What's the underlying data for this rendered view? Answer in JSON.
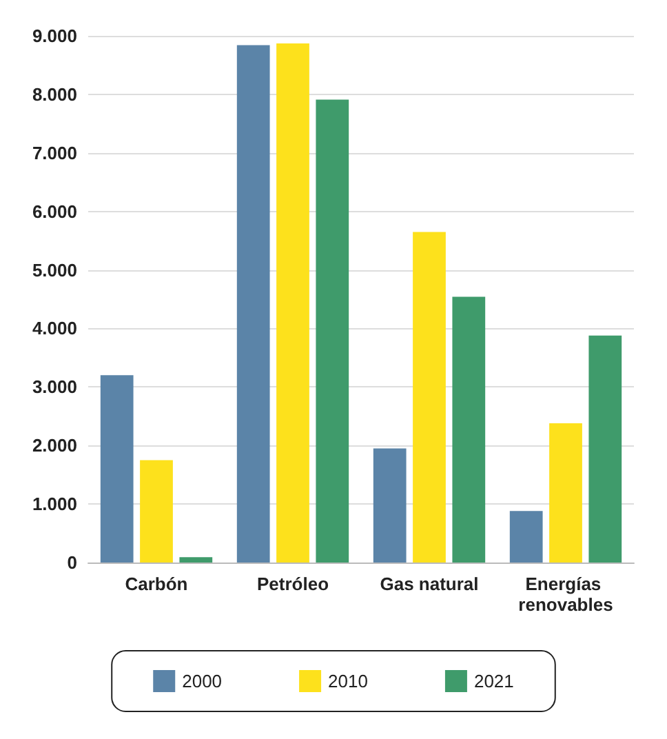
{
  "chart_data": {
    "type": "bar",
    "categories": [
      "Carbón",
      "Petróleo",
      "Gas natural",
      "Energías renovables"
    ],
    "series": [
      {
        "name": "2000",
        "color": "#5b84a8",
        "values": [
          3200,
          8840,
          1950,
          880
        ]
      },
      {
        "name": "2010",
        "color": "#fde11c",
        "values": [
          1750,
          8870,
          5650,
          2380
        ]
      },
      {
        "name": "2021",
        "color": "#3f9b6b",
        "values": [
          90,
          7910,
          4540,
          3880
        ]
      }
    ],
    "ylim": [
      0,
      9000
    ],
    "yticks": [
      0,
      {
        "value": 1000,
        "label": "1.000"
      },
      {
        "value": 2000,
        "label": "2.000"
      },
      {
        "value": 3000,
        "label": "3.000"
      },
      {
        "value": 4000,
        "label": "4.000"
      },
      {
        "value": 5000,
        "label": "5.000"
      },
      {
        "value": 6000,
        "label": "6.000"
      },
      {
        "value": 7000,
        "label": "7.000"
      },
      {
        "value": 8000,
        "label": "8.000"
      },
      {
        "value": 9000,
        "label": "9.000"
      }
    ],
    "grid": "y",
    "legend": "bottom"
  }
}
